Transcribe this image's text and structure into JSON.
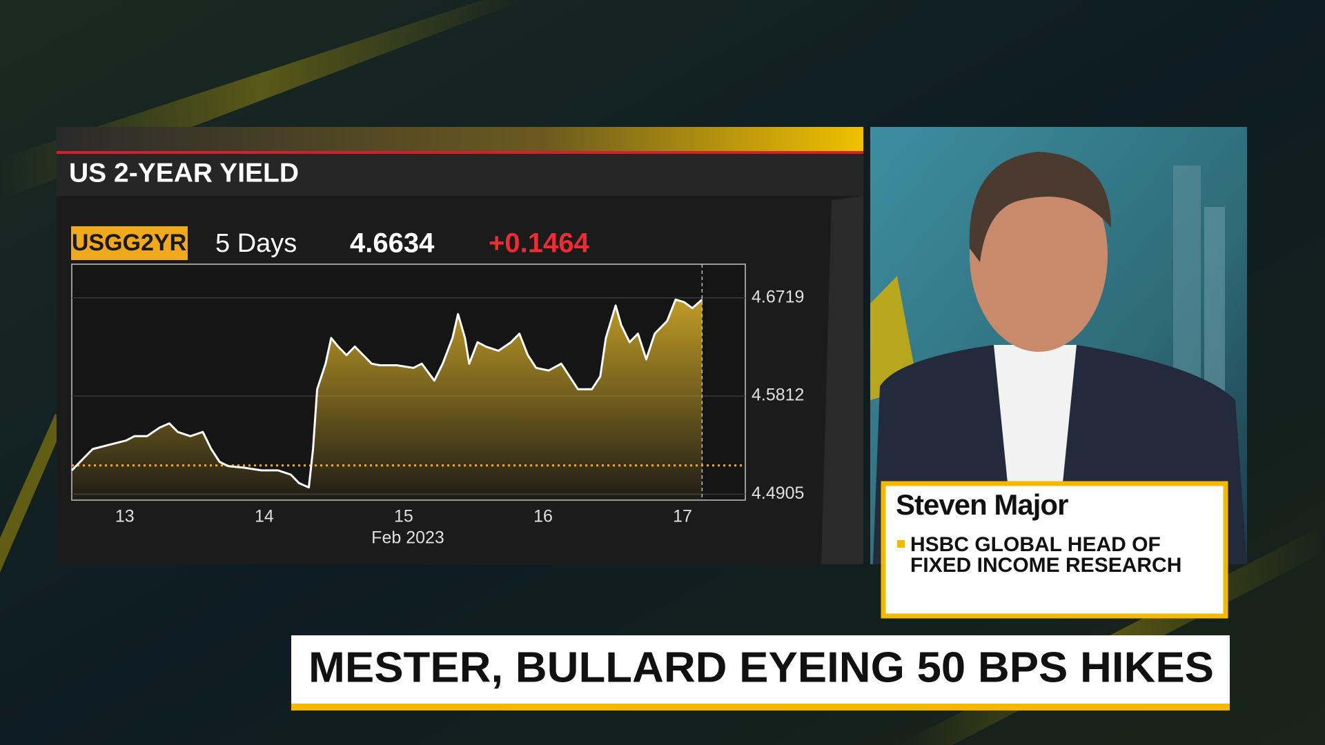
{
  "chart_data": {
    "type": "area",
    "title": "US 2-YEAR YIELD",
    "ticker": "USGG2YR",
    "period": "5 Days",
    "last": "4.6634",
    "change": "+0.1464",
    "xlabel": "Feb 2023",
    "color": "#ffffff",
    "fill": "#c9a227",
    "reference_line": 4.517,
    "x": [
      12.62,
      12.68,
      12.77,
      12.89,
      13.01,
      13.07,
      13.16,
      13.25,
      13.32,
      13.38,
      13.47,
      13.56,
      13.62,
      13.68,
      13.74,
      13.86,
      13.98,
      14.1,
      14.19,
      14.25,
      14.32,
      14.35,
      14.38,
      14.44,
      14.48,
      14.53,
      14.59,
      14.65,
      14.71,
      14.77,
      14.83,
      14.95,
      15.07,
      15.13,
      15.22,
      15.28,
      15.35,
      15.39,
      15.44,
      15.47,
      15.53,
      15.59,
      15.68,
      15.77,
      15.83,
      15.89,
      15.95,
      16.04,
      16.13,
      16.19,
      16.25,
      16.35,
      16.41,
      16.45,
      16.52,
      16.56,
      16.62,
      16.68,
      16.74,
      16.8,
      16.89,
      16.95,
      17.01,
      17.07,
      17.14
    ],
    "values": [
      4.5125,
      4.5204,
      4.5322,
      4.5362,
      4.5401,
      4.5441,
      4.5441,
      4.552,
      4.5559,
      4.548,
      4.5441,
      4.548,
      4.5322,
      4.5204,
      4.5165,
      4.5149,
      4.5125,
      4.5125,
      4.5086,
      4.5007,
      4.4967,
      4.5322,
      4.5875,
      4.6111,
      4.6348,
      4.6269,
      4.619,
      4.6269,
      4.619,
      4.6111,
      4.6096,
      4.6096,
      4.6072,
      4.6111,
      4.5954,
      4.6111,
      4.6348,
      4.6569,
      4.6348,
      4.6111,
      4.6309,
      4.6269,
      4.623,
      4.6309,
      4.6388,
      4.619,
      4.6072,
      4.6048,
      4.6111,
      4.5993,
      4.5875,
      4.5875,
      4.5993,
      4.6348,
      4.6648,
      4.6467,
      4.6309,
      4.6388,
      4.6151,
      4.6388,
      4.6506,
      4.6703,
      4.668,
      4.6624,
      4.6703
    ],
    "xlim": [
      12.62,
      17.45
    ],
    "xticks": [
      13,
      14,
      15,
      16,
      17
    ],
    "ylim": [
      4.485,
      4.703
    ],
    "yticks": [
      4.4905,
      4.5812,
      4.6719
    ],
    "grid": true
  },
  "lower_third": {
    "name": "Steven Major",
    "title_lines": [
      "HSBC GLOBAL HEAD OF",
      "FIXED INCOME RESEARCH"
    ]
  },
  "headline": "MESTER, BULLARD EYEING 50 BPS HIKES"
}
